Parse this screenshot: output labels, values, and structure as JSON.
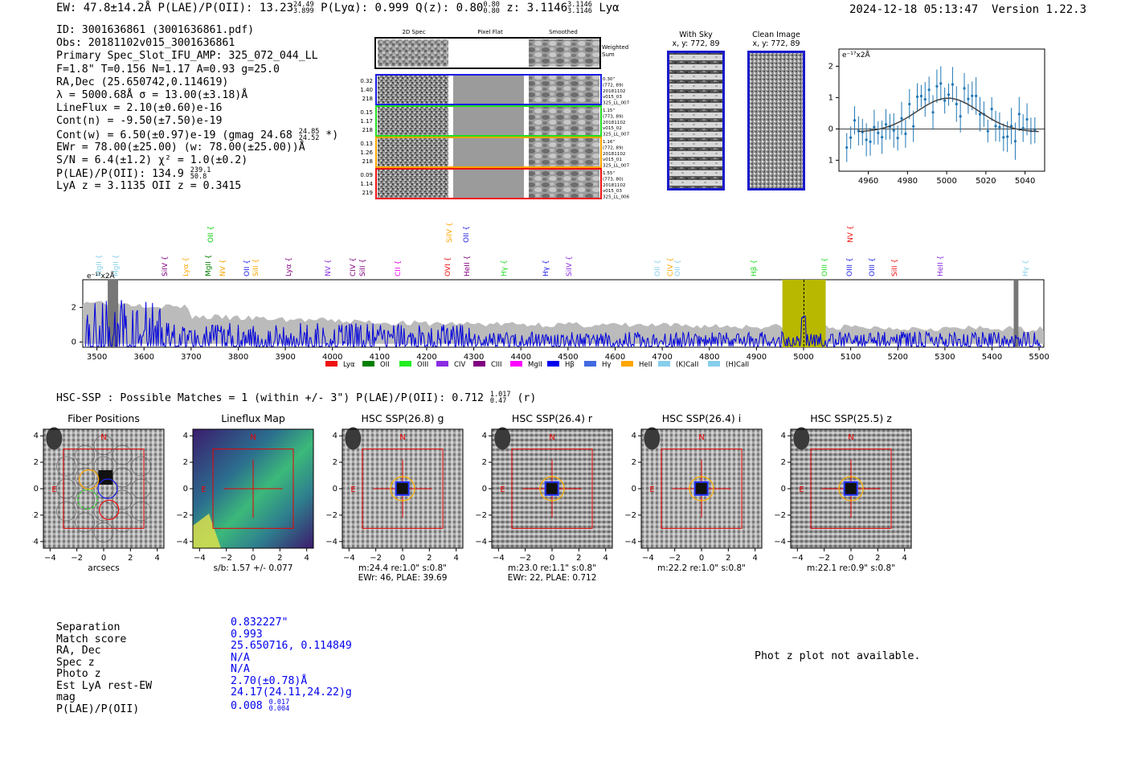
{
  "header": {
    "ew_label": "EW: 47.8±14.2Å",
    "plae_label": "P(LAE)/P(OII): 13.23",
    "plae_hi": "24.49",
    "plae_lo": "3.899",
    "plya": "P(Lyα): 0.999",
    "qz_label": "Q(z): 0.80",
    "qz_hi": "0.80",
    "qz_lo": "0.80",
    "z_label": "z: 3.1146",
    "z_hi": "3.1146",
    "z_lo": "3.1146",
    "line_name": "Lyα",
    "datetime": "2024-12-18 05:13:47",
    "version": "Version 1.22.3"
  },
  "info": {
    "id": "ID: 3001636861 (3001636861.pdf)",
    "obs": "Obs: 20181102v015_3001636861",
    "primary": "Primary Spec_Slot_IFU_AMP: 325_072_044_LL",
    "fiber_params": "F=1.8\"  T=0.156  N=1.17  A=0.93  g=25.0",
    "radec": "RA,Dec (25.650742,0.114619)",
    "lambda": "λ = 5000.68Å  σ = 13.00(±3.18)Å",
    "lineflux": "LineFlux = 2.10(±0.60)e-16",
    "contn": "Cont(n) = -9.50(±7.50)e-19",
    "contw": "Cont(w) = 6.50(±0.97)e-19 (gmag 24.68",
    "contw_hi": "24.85",
    "contw_lo": "24.52",
    "contw_tail": "*)",
    "ewr": "EWr = 78.00(±25.00) (w: 78.00(±25.00))Å",
    "sn": "S/N = 6.4(±1.2)  χ² = 1.0(±0.2)",
    "plae": "P(LAE)/P(OII): 134.9",
    "plae_hi": "239.1",
    "plae_lo": "50.8",
    "lyaz": "LyA z = 3.1135  OII z = 0.3415"
  },
  "cutouts": {
    "col_2d": "2D Spec",
    "col_flat": "Pixel Flat",
    "col_smooth": "Smoothed",
    "weighted": "Weighted",
    "sum": "Sum",
    "rows": [
      {
        "l1": "0.32",
        "l2": "1.40",
        "l3": "218",
        "r1": "0.30\"",
        "r2": "(772, 89)",
        "r3": "20181102",
        "r4": "v015_03",
        "r5": "325_LL_007",
        "color": "#1a1ae6"
      },
      {
        "l1": "0.15",
        "l2": "1.17",
        "l3": "218",
        "r1": "1.15\"",
        "r2": "(773, 89)",
        "r3": "20181102",
        "r4": "v015_02",
        "r5": "325_LL_007",
        "color": "#22dd22"
      },
      {
        "l1": "0.13",
        "l2": "1.26",
        "l3": "218",
        "r1": "1.16\"",
        "r2": "(772, 89)",
        "r3": "20181102",
        "r4": "v015_01",
        "r5": "325_LL_007",
        "color": "#ffa500"
      },
      {
        "l1": "0.09",
        "l2": "1.14",
        "l3": "219",
        "r1": "1.55\"",
        "r2": "(773, 80)",
        "r3": "20181102",
        "r4": "v015_03",
        "r5": "325_LL_006",
        "color": "#ee1111"
      }
    ],
    "with_sky_title": "With Sky",
    "with_sky_xy": "x, y: 772, 89",
    "clean_title": "Clean Image",
    "clean_xy": "x, y: 772, 89"
  },
  "zoom_plot": {
    "ylabel": "e⁻¹⁷x2Å",
    "xticks": [
      "4960",
      "4980",
      "5000",
      "5020",
      "5040"
    ],
    "yticks": [
      "2",
      "1",
      "0",
      "-1"
    ]
  },
  "spectrum": {
    "ylabel": "e⁻¹⁷x2Å",
    "xticks": [
      "3500",
      "3600",
      "3700",
      "3800",
      "3900",
      "4000",
      "4100",
      "4200",
      "4300",
      "4400",
      "4500",
      "4600",
      "4700",
      "4800",
      "4900",
      "5000",
      "5100",
      "5200",
      "5300",
      "5400",
      "5500"
    ],
    "yticks": [
      "2",
      "0"
    ],
    "line_labels": [
      {
        "t": "MgII",
        "c": "#87ceeb"
      },
      {
        "t": "MgII",
        "c": "#87ceeb"
      },
      {
        "t": "SiIV",
        "c": "#800080"
      },
      {
        "t": "Lyα",
        "c": "#ffa500"
      },
      {
        "t": "OII",
        "c": "#00cc00"
      },
      {
        "t": "MgII",
        "c": "#008000"
      },
      {
        "t": "NV",
        "c": "#ffa500"
      },
      {
        "t": "OII",
        "c": "#1a1ae6"
      },
      {
        "t": "SiII",
        "c": "#ffa500"
      },
      {
        "t": "Lyα",
        "c": "#800080"
      },
      {
        "t": "NV",
        "c": "#8a2be2"
      },
      {
        "t": "CIV",
        "c": "#800080"
      },
      {
        "t": "SiII",
        "c": "#800080"
      },
      {
        "t": "CII",
        "c": "#ee00ee"
      },
      {
        "t": "SiIV",
        "c": "#ffa500"
      },
      {
        "t": "OVI",
        "c": "#ee1111"
      },
      {
        "t": "OII",
        "c": "#1a1ae6"
      },
      {
        "t": "HeII",
        "c": "#800080"
      },
      {
        "t": "Hγ",
        "c": "#22dd22"
      },
      {
        "t": "Hγ",
        "c": "#1a1ae6"
      },
      {
        "t": "SiIV",
        "c": "#8a2be2"
      },
      {
        "t": "OII",
        "c": "#87ceeb"
      },
      {
        "t": "CIV",
        "c": "#ffa500"
      },
      {
        "t": "OII",
        "c": "#87ceeb"
      },
      {
        "t": "Hβ",
        "c": "#22dd22"
      },
      {
        "t": "OIII",
        "c": "#22dd22"
      },
      {
        "t": "OIII",
        "c": "#1a1ae6"
      },
      {
        "t": "NV",
        "c": "#ee1111"
      },
      {
        "t": "OIII",
        "c": "#1a1ae6"
      },
      {
        "t": "SiII",
        "c": "#ee1111"
      },
      {
        "t": "HeII",
        "c": "#8a2be2"
      },
      {
        "t": "Hγ",
        "c": "#87ceeb"
      }
    ],
    "legend": [
      {
        "t": "Lyα",
        "c": "#ee1111"
      },
      {
        "t": "OII",
        "c": "#008000"
      },
      {
        "t": "OIII",
        "c": "#22ee22"
      },
      {
        "t": "CIV",
        "c": "#8a2be2"
      },
      {
        "t": "CIII",
        "c": "#800080"
      },
      {
        "t": "MgII",
        "c": "#ff00ff"
      },
      {
        "t": "Hβ",
        "c": "#0000ee"
      },
      {
        "t": "Hγ",
        "c": "#4169e1"
      },
      {
        "t": "HeII",
        "c": "#ffa500"
      },
      {
        "t": "(K)CaII",
        "c": "#87ceeb"
      },
      {
        "t": "(H)CaII",
        "c": "#87ceeb"
      }
    ]
  },
  "hsc": {
    "header": "HSC-SSP : Possible Matches = 1 (within +/- 3\")  P(LAE)/P(OII): 0.712",
    "header_hi": "1.017",
    "header_lo": "0.47",
    "header_tail": "(r)",
    "panels": [
      {
        "title": "Fiber Positions",
        "cap1": "arcsecs",
        "cap2": ""
      },
      {
        "title": "Lineflux Map",
        "cap1": "s/b: 1.57 +/- 0.077",
        "cap2": ""
      },
      {
        "title": "HSC SSP(26.8) g",
        "cap1": "m:24.4  re:1.0\"  s:0.8\"",
        "cap2": "EWr: 46, PLAE: 39.69"
      },
      {
        "title": "HSC SSP(26.4) r",
        "cap1": "m:23.0  re:1.1\"  s:0.8\"",
        "cap2": "EWr: 22, PLAE: 0.712"
      },
      {
        "title": "HSC SSP(26.4) i",
        "cap1": "m:22.2  re:1.0\"  s:0.8\"",
        "cap2": ""
      },
      {
        "title": "HSC SSP(25.5) z",
        "cap1": "m:22.1  re:0.9\"  s:0.8\"",
        "cap2": ""
      }
    ],
    "xticks": [
      "−4",
      "−2",
      "0",
      "2",
      "4"
    ],
    "yticks": [
      "4",
      "2",
      "0",
      "−2",
      "−4"
    ],
    "north": "N",
    "east": "E"
  },
  "match_table": {
    "labels": [
      "Separation",
      "Match score",
      "RA, Dec",
      "Spec z",
      "Photo z",
      "Est LyA rest-EW",
      "mag",
      "P(LAE)/P(OII)"
    ],
    "values": [
      "0.832227\"",
      "0.993",
      "25.650716, 0.114849",
      "N/A",
      "N/A",
      "2.70(±0.78)Å",
      "24.17(24.11,24.22)g",
      "0.008"
    ],
    "plae_hi": "0.017",
    "plae_lo": "0.004"
  },
  "photz": "Phot z plot not available."
}
